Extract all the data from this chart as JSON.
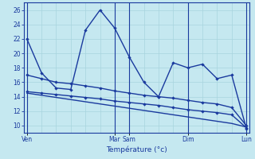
{
  "xlabel": "Température (°c)",
  "bg_color": "#c5e8f0",
  "grid_color": "#a8d4de",
  "line_color": "#1a3a9e",
  "ylim": [
    9.0,
    27.0
  ],
  "yticks": [
    10,
    12,
    14,
    16,
    18,
    20,
    22,
    24,
    26
  ],
  "day_positions": [
    0,
    6,
    7,
    11,
    15
  ],
  "day_labels": [
    "Ven",
    "Mar",
    "Sam",
    "Dim",
    "Lun"
  ],
  "n_points": 16,
  "series1": [
    22,
    17.3,
    15.2,
    15.0,
    23.2,
    26.0,
    23.5,
    19.5,
    16.0,
    14.0,
    18.7,
    18.0,
    18.5,
    16.5,
    17.0,
    9.6
  ],
  "series1_markers": [
    true,
    false,
    true,
    true,
    true,
    true,
    true,
    true,
    true,
    true,
    true,
    true,
    true,
    false,
    true,
    true
  ],
  "series2": [
    17.0,
    16.5,
    16.0,
    15.8,
    15.5,
    15.2,
    14.8,
    14.5,
    14.2,
    14.0,
    13.8,
    13.5,
    13.2,
    13.0,
    12.5,
    10.0
  ],
  "series2_markers": [
    true,
    false,
    false,
    false,
    false,
    false,
    false,
    false,
    false,
    false,
    false,
    false,
    false,
    false,
    false,
    false
  ],
  "series3": [
    14.7,
    14.5,
    14.3,
    14.1,
    13.9,
    13.7,
    13.4,
    13.2,
    13.0,
    12.8,
    12.5,
    12.2,
    12.0,
    11.8,
    11.5,
    9.7
  ],
  "series3_markers": [
    true,
    true,
    false,
    false,
    false,
    false,
    false,
    false,
    false,
    false,
    false,
    false,
    true,
    true,
    true,
    true
  ],
  "series4": [
    14.5,
    14.2,
    13.9,
    13.6,
    13.3,
    13.0,
    12.7,
    12.4,
    12.1,
    11.8,
    11.5,
    11.2,
    10.9,
    10.6,
    10.3,
    9.8
  ],
  "series4_markers": [
    false,
    false,
    false,
    false,
    false,
    false,
    false,
    false,
    false,
    false,
    false,
    false,
    false,
    false,
    false,
    false
  ]
}
